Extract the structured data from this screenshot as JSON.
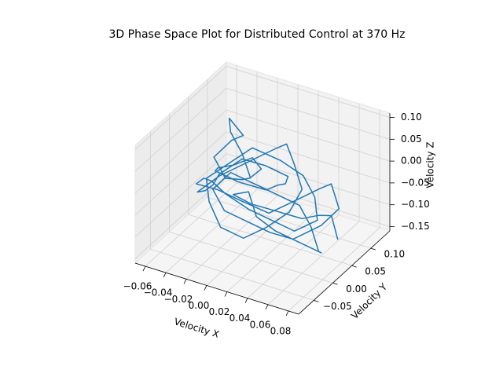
{
  "chart_data": {
    "type": "line3d",
    "title": "3D Phase Space Plot for Distributed Control at 370 Hz",
    "xlabel": "Velocity X",
    "ylabel": "Velocity Y",
    "zlabel": "Velocity Z",
    "color": "#1f77b4",
    "grid": true,
    "xlim": [
      -0.07,
      0.09
    ],
    "ylim": [
      -0.09,
      0.15
    ],
    "zlim": [
      -0.16,
      0.11
    ],
    "xticks": [
      {
        "value": -0.06,
        "label": "−0.06"
      },
      {
        "value": -0.04,
        "label": "−0.04"
      },
      {
        "value": -0.02,
        "label": "−0.02"
      },
      {
        "value": 0,
        "label": "0.00"
      },
      {
        "value": 0.02,
        "label": "0.02"
      },
      {
        "value": 0.04,
        "label": "0.04"
      },
      {
        "value": 0.06,
        "label": "0.06"
      },
      {
        "value": 0.08,
        "label": "0.08"
      }
    ],
    "yticks": [
      {
        "value": -0.05,
        "label": "−0.05"
      },
      {
        "value": 0,
        "label": "0.00"
      },
      {
        "value": 0.05,
        "label": "0.05"
      },
      {
        "value": 0.1,
        "label": "0.10"
      }
    ],
    "zticks": [
      {
        "value": -0.15,
        "label": "−0.15"
      },
      {
        "value": -0.1,
        "label": "−0.10"
      },
      {
        "value": -0.05,
        "label": "−0.05"
      },
      {
        "value": 0,
        "label": "0.00"
      },
      {
        "value": 0.05,
        "label": "0.05"
      },
      {
        "value": 0.1,
        "label": "0.10"
      }
    ],
    "x": [
      0.002,
      -0.01,
      -0.025,
      -0.03,
      -0.02,
      -0.035,
      -0.045,
      -0.03,
      -0.01,
      0.005,
      0.02,
      0.015,
      0.0,
      -0.015,
      -0.03,
      -0.04,
      -0.025,
      -0.005,
      0.01,
      0.025,
      0.035,
      0.02,
      0.005,
      -0.01,
      -0.02,
      -0.035,
      -0.05,
      -0.04,
      -0.02,
      0.0,
      0.015,
      0.03,
      0.045,
      0.04,
      0.025,
      0.01,
      -0.005,
      -0.02,
      -0.03,
      -0.015,
      0.0,
      0.02,
      0.035,
      0.05,
      0.06,
      0.045,
      0.03,
      0.015,
      0.0,
      -0.01,
      -0.025,
      -0.04,
      -0.03,
      -0.015,
      0.005,
      0.02,
      0.04,
      0.055,
      0.07,
      0.06,
      0.04,
      0.025,
      0.01,
      -0.005,
      -0.02,
      -0.01,
      0.005,
      0.02,
      0.035,
      0.05,
      0.065,
      0.075,
      0.06,
      0.045,
      0.03,
      0.015,
      0.0,
      -0.015,
      -0.005,
      0.01,
      0.03,
      0.05,
      0.07,
      0.08
    ],
    "y": [
      0.02,
      0.03,
      0.04,
      0.05,
      0.06,
      0.07,
      0.05,
      0.04,
      0.03,
      0.01,
      0.0,
      -0.01,
      -0.02,
      0.0,
      0.02,
      0.04,
      0.06,
      0.08,
      0.07,
      0.05,
      0.03,
      0.01,
      -0.01,
      -0.03,
      -0.02,
      0.0,
      0.02,
      0.05,
      0.07,
      0.09,
      0.08,
      0.06,
      0.04,
      0.02,
      0.0,
      -0.02,
      -0.04,
      -0.03,
      -0.01,
      0.01,
      0.03,
      0.05,
      0.07,
      0.06,
      0.04,
      0.02,
      0.0,
      -0.02,
      -0.04,
      -0.05,
      -0.03,
      -0.01,
      0.02,
      0.04,
      0.06,
      0.08,
      0.1,
      0.09,
      0.07,
      0.05,
      0.03,
      0.01,
      -0.01,
      -0.03,
      -0.02,
      0.0,
      0.02,
      0.04,
      0.06,
      0.05,
      0.03,
      0.01,
      -0.01,
      -0.03,
      -0.04,
      -0.02,
      0.0,
      0.02,
      0.04,
      0.06,
      0.08,
      0.07,
      0.05,
      0.04
    ],
    "z": [
      0.0,
      0.04,
      0.07,
      0.09,
      0.05,
      0.02,
      -0.01,
      -0.04,
      -0.02,
      0.01,
      0.05,
      0.08,
      0.06,
      0.03,
      0.0,
      -0.03,
      -0.06,
      -0.08,
      -0.05,
      -0.02,
      0.02,
      0.05,
      0.07,
      0.04,
      0.0,
      -0.04,
      -0.07,
      -0.05,
      -0.02,
      0.01,
      0.04,
      0.02,
      -0.01,
      -0.05,
      -0.08,
      -0.1,
      -0.07,
      -0.03,
      0.0,
      0.03,
      0.06,
      0.03,
      -0.01,
      -0.04,
      -0.07,
      -0.09,
      -0.06,
      -0.03,
      0.01,
      0.04,
      0.02,
      -0.02,
      -0.05,
      -0.08,
      -0.11,
      -0.09,
      -0.06,
      -0.03,
      -0.06,
      -0.09,
      -0.12,
      -0.1,
      -0.07,
      -0.04,
      -0.01,
      0.02,
      -0.01,
      -0.04,
      -0.07,
      -0.1,
      -0.13,
      -0.11,
      -0.08,
      -0.05,
      -0.02,
      0.01,
      -0.02,
      -0.05,
      -0.08,
      -0.1,
      -0.12,
      -0.09,
      -0.06,
      -0.1
    ]
  }
}
